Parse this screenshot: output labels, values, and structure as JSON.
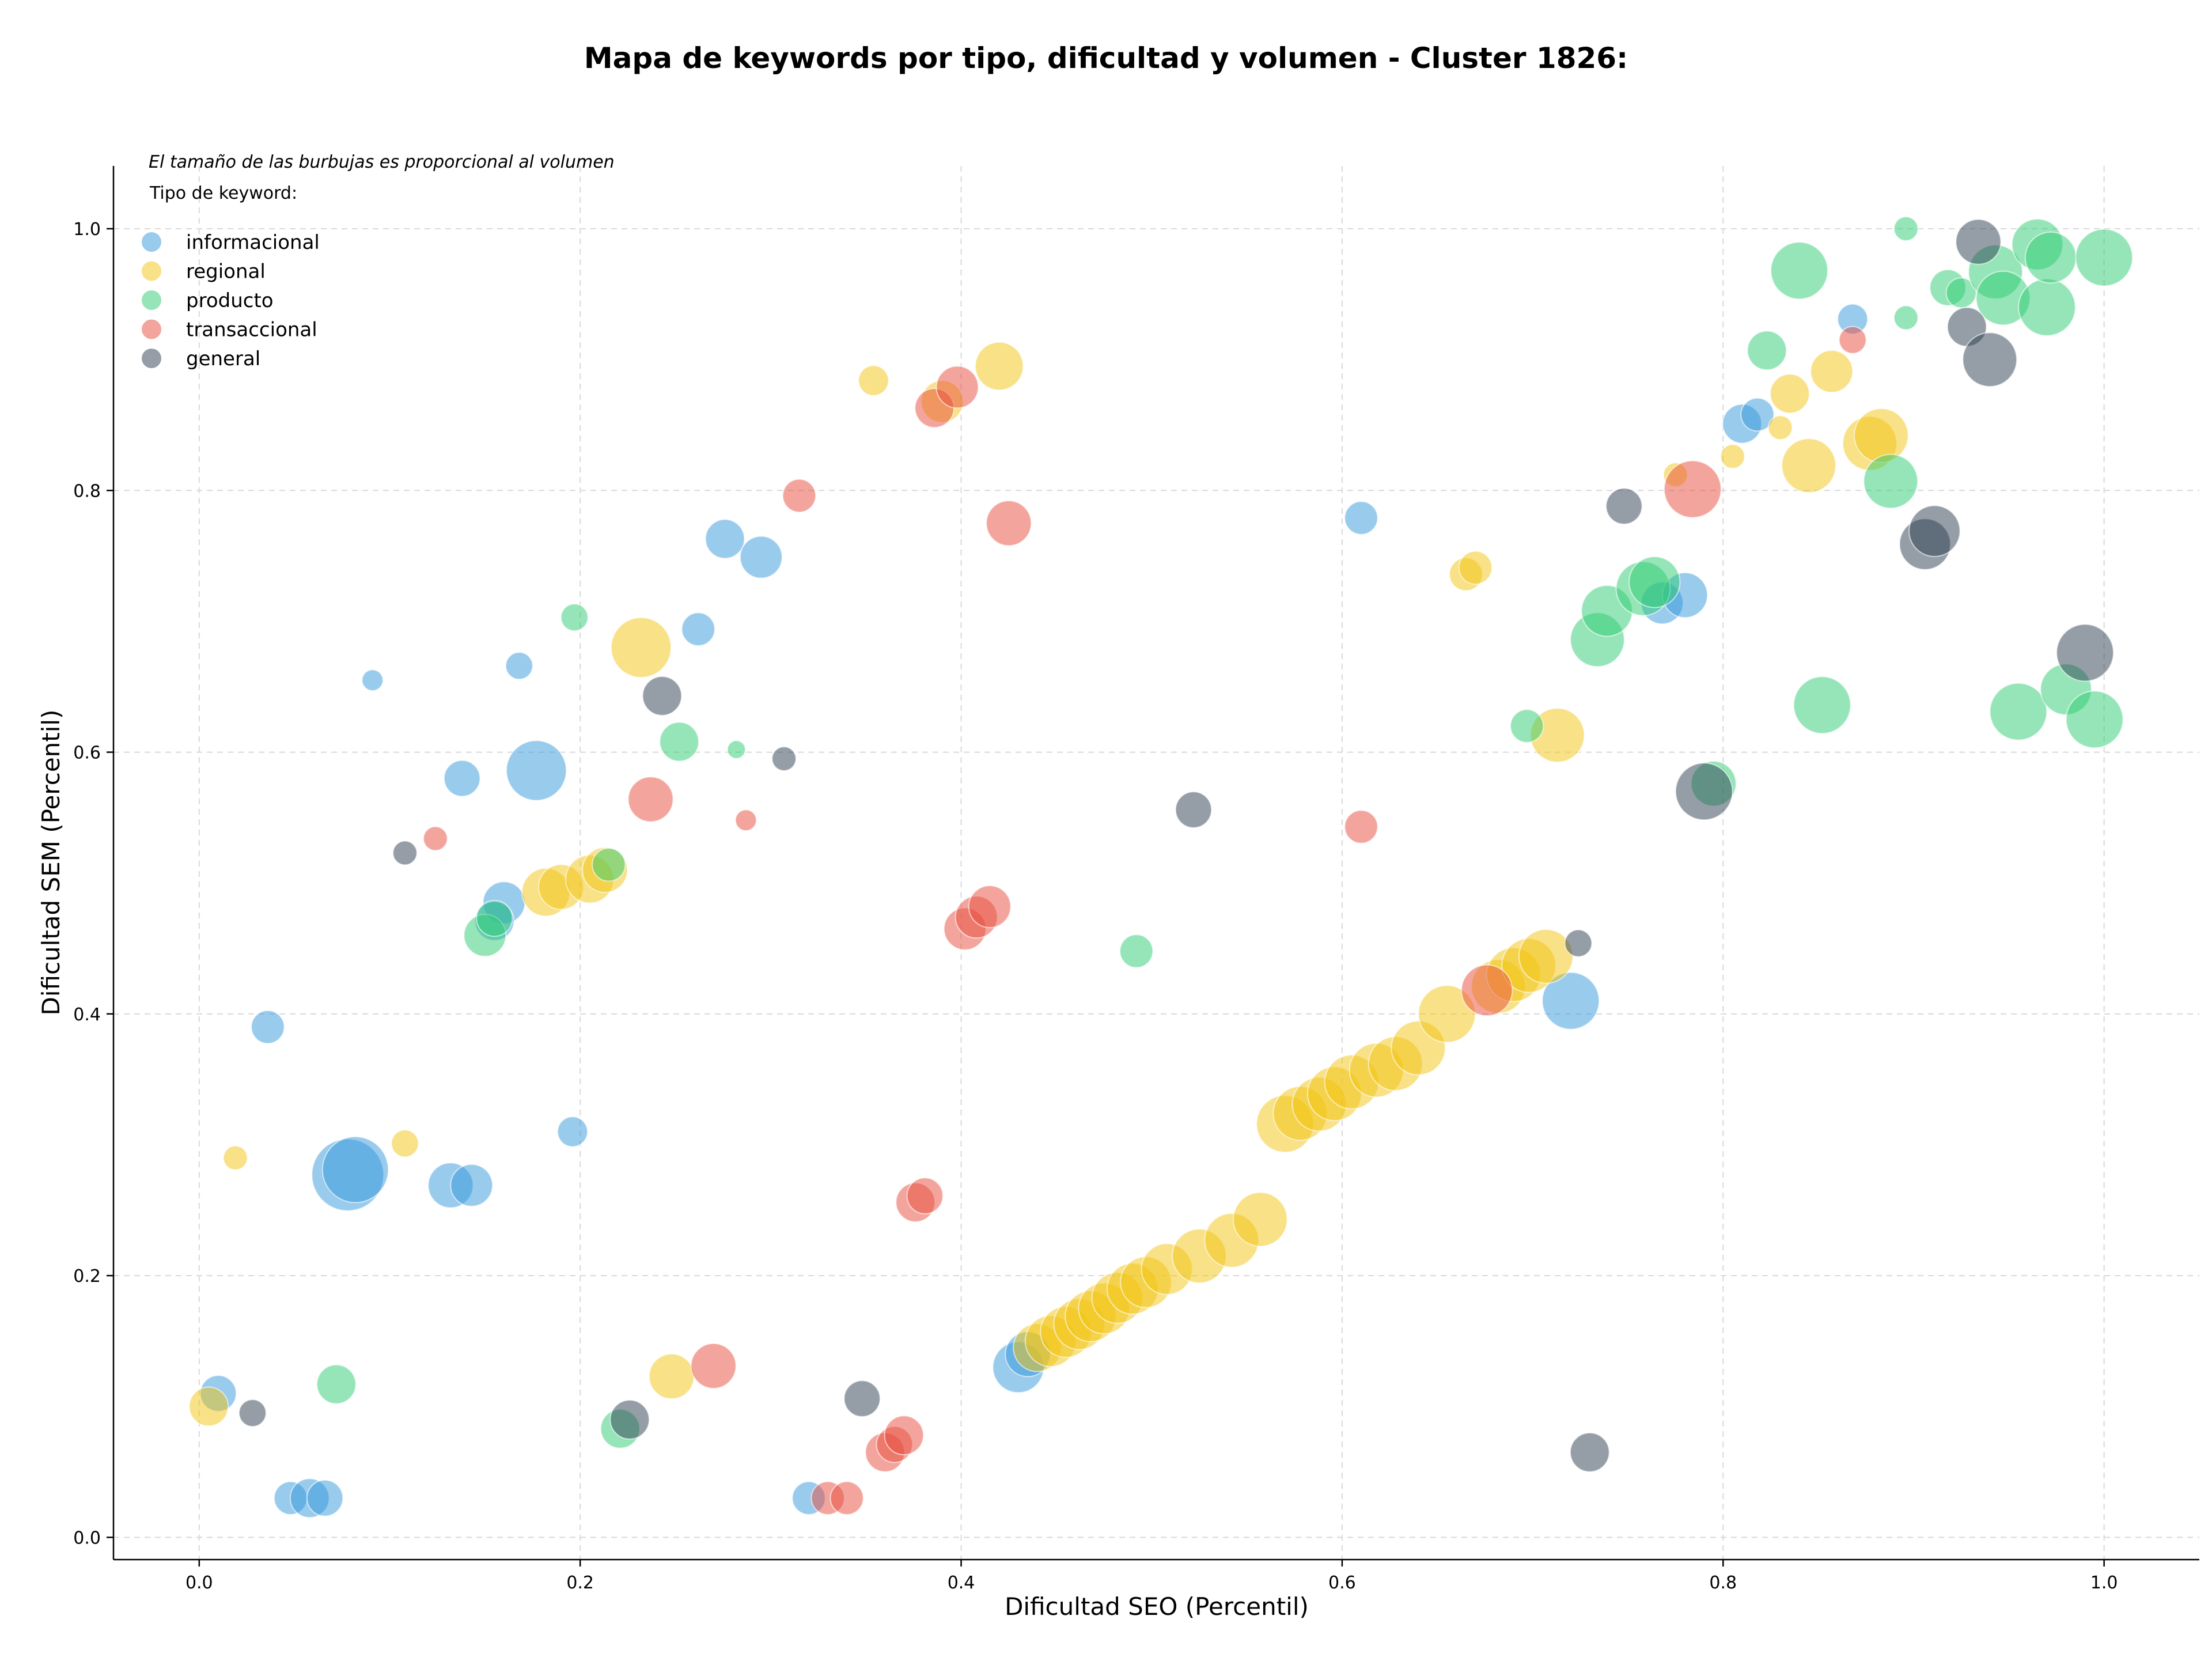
{
  "chart_data": {
    "type": "scatter",
    "title": "Mapa de keywords por tipo, dificultad y volumen - Cluster 1826:",
    "xlabel": "Dificultad SEO (Percentil)",
    "ylabel": "Dificultad SEM (Percentil)",
    "xlim": [
      -0.045,
      1.05
    ],
    "ylim": [
      -0.017,
      1.048
    ],
    "xticks": [
      0.0,
      0.2,
      0.4,
      0.6,
      0.8,
      1.0
    ],
    "yticks": [
      0.0,
      0.2,
      0.4,
      0.6,
      0.8,
      1.0
    ],
    "xtick_labels": [
      "0.0",
      "0.2",
      "0.4",
      "0.6",
      "0.8",
      "1.0"
    ],
    "ytick_labels": [
      "0.0",
      "0.2",
      "0.4",
      "0.6",
      "0.8",
      "1.0"
    ],
    "grid": true,
    "note": "El tamaño de las burbujas es proporcional al volumen",
    "legend_title": "Tipo de keyword:",
    "legend_position": "top-left",
    "series": [
      {
        "name": "informacional",
        "color": "#3498db",
        "points": [
          [
            0.01,
            0.11,
            12
          ],
          [
            0.048,
            0.03,
            11
          ],
          [
            0.058,
            0.03,
            13
          ],
          [
            0.066,
            0.03,
            12
          ],
          [
            0.036,
            0.39,
            11
          ],
          [
            0.091,
            0.655,
            7
          ],
          [
            0.078,
            0.277,
            24
          ],
          [
            0.082,
            0.281,
            22
          ],
          [
            0.132,
            0.269,
            15
          ],
          [
            0.143,
            0.269,
            14
          ],
          [
            0.138,
            0.58,
            12
          ],
          [
            0.16,
            0.485,
            14
          ],
          [
            0.155,
            0.471,
            13
          ],
          [
            0.168,
            0.666,
            9
          ],
          [
            0.177,
            0.586,
            20
          ],
          [
            0.196,
            0.31,
            10
          ],
          [
            0.262,
            0.694,
            11
          ],
          [
            0.276,
            0.763,
            13
          ],
          [
            0.295,
            0.749,
            14
          ],
          [
            0.32,
            0.03,
            11
          ],
          [
            0.43,
            0.13,
            17
          ],
          [
            0.435,
            0.14,
            15
          ],
          [
            0.61,
            0.779,
            11
          ],
          [
            0.72,
            0.41,
            19
          ],
          [
            0.768,
            0.714,
            14
          ],
          [
            0.78,
            0.72,
            15
          ],
          [
            0.81,
            0.851,
            13
          ],
          [
            0.818,
            0.858,
            11
          ],
          [
            0.868,
            0.931,
            10
          ]
        ]
      },
      {
        "name": "regional",
        "color": "#f1c40f",
        "points": [
          [
            0.005,
            0.1,
            13
          ],
          [
            0.019,
            0.29,
            8
          ],
          [
            0.108,
            0.301,
            9
          ],
          [
            0.182,
            0.493,
            16
          ],
          [
            0.19,
            0.497,
            15
          ],
          [
            0.205,
            0.503,
            16
          ],
          [
            0.213,
            0.51,
            15
          ],
          [
            0.232,
            0.68,
            20
          ],
          [
            0.248,
            0.123,
            15
          ],
          [
            0.354,
            0.884,
            10
          ],
          [
            0.39,
            0.868,
            14
          ],
          [
            0.42,
            0.895,
            16
          ],
          [
            0.44,
            0.145,
            16
          ],
          [
            0.447,
            0.15,
            17
          ],
          [
            0.455,
            0.157,
            17
          ],
          [
            0.462,
            0.163,
            17
          ],
          [
            0.468,
            0.169,
            17
          ],
          [
            0.475,
            0.175,
            17
          ],
          [
            0.482,
            0.183,
            17
          ],
          [
            0.49,
            0.19,
            17
          ],
          [
            0.497,
            0.195,
            17
          ],
          [
            0.508,
            0.205,
            17
          ],
          [
            0.525,
            0.215,
            18
          ],
          [
            0.542,
            0.227,
            18
          ],
          [
            0.557,
            0.243,
            18
          ],
          [
            0.57,
            0.316,
            19
          ],
          [
            0.578,
            0.324,
            18
          ],
          [
            0.588,
            0.331,
            18
          ],
          [
            0.596,
            0.339,
            18
          ],
          [
            0.605,
            0.348,
            18
          ],
          [
            0.618,
            0.357,
            18
          ],
          [
            0.628,
            0.362,
            18
          ],
          [
            0.64,
            0.374,
            18
          ],
          [
            0.655,
            0.4,
            19
          ],
          [
            0.665,
            0.736,
            11
          ],
          [
            0.67,
            0.741,
            11
          ],
          [
            0.682,
            0.421,
            18
          ],
          [
            0.69,
            0.43,
            18
          ],
          [
            0.698,
            0.437,
            18
          ],
          [
            0.707,
            0.444,
            18
          ],
          [
            0.713,
            0.613,
            18
          ],
          [
            0.775,
            0.812,
            8
          ],
          [
            0.805,
            0.826,
            8
          ],
          [
            0.83,
            0.848,
            8
          ],
          [
            0.835,
            0.874,
            13
          ],
          [
            0.845,
            0.819,
            18
          ],
          [
            0.857,
            0.891,
            14
          ],
          [
            0.877,
            0.836,
            18
          ],
          [
            0.883,
            0.842,
            18
          ]
        ]
      },
      {
        "name": "producto",
        "color": "#2ecc71",
        "points": [
          [
            0.072,
            0.117,
            13
          ],
          [
            0.15,
            0.46,
            14
          ],
          [
            0.155,
            0.473,
            12
          ],
          [
            0.197,
            0.703,
            9
          ],
          [
            0.215,
            0.514,
            11
          ],
          [
            0.221,
            0.083,
            13
          ],
          [
            0.252,
            0.608,
            13
          ],
          [
            0.282,
            0.602,
            6
          ],
          [
            0.492,
            0.448,
            11
          ],
          [
            0.697,
            0.62,
            11
          ],
          [
            0.734,
            0.686,
            18
          ],
          [
            0.739,
            0.708,
            17
          ],
          [
            0.758,
            0.725,
            18
          ],
          [
            0.764,
            0.73,
            17
          ],
          [
            0.795,
            0.576,
            15
          ],
          [
            0.823,
            0.907,
            13
          ],
          [
            0.84,
            0.968,
            19
          ],
          [
            0.852,
            0.636,
            19
          ],
          [
            0.888,
            0.807,
            18
          ],
          [
            0.896,
            1.0,
            8
          ],
          [
            0.896,
            0.932,
            8
          ],
          [
            0.918,
            0.955,
            12
          ],
          [
            0.925,
            0.951,
            10
          ],
          [
            0.943,
            0.967,
            18
          ],
          [
            0.947,
            0.947,
            18
          ],
          [
            0.955,
            0.631,
            19
          ],
          [
            0.965,
            0.988,
            17
          ],
          [
            0.97,
            0.94,
            19
          ],
          [
            0.972,
            0.978,
            17
          ],
          [
            0.98,
            0.648,
            17
          ],
          [
            0.995,
            0.625,
            19
          ],
          [
            1.0,
            0.978,
            19
          ]
        ]
      },
      {
        "name": "transaccional",
        "color": "#e74c3c",
        "points": [
          [
            0.124,
            0.534,
            8
          ],
          [
            0.237,
            0.564,
            15
          ],
          [
            0.27,
            0.131,
            15
          ],
          [
            0.287,
            0.548,
            7
          ],
          [
            0.315,
            0.796,
            11
          ],
          [
            0.33,
            0.03,
            11
          ],
          [
            0.34,
            0.03,
            11
          ],
          [
            0.36,
            0.065,
            13
          ],
          [
            0.365,
            0.071,
            12
          ],
          [
            0.37,
            0.078,
            13
          ],
          [
            0.376,
            0.256,
            13
          ],
          [
            0.381,
            0.261,
            12
          ],
          [
            0.386,
            0.863,
            13
          ],
          [
            0.398,
            0.879,
            14
          ],
          [
            0.402,
            0.465,
            14
          ],
          [
            0.408,
            0.474,
            14
          ],
          [
            0.415,
            0.482,
            14
          ],
          [
            0.425,
            0.775,
            15
          ],
          [
            0.61,
            0.543,
            11
          ],
          [
            0.676,
            0.418,
            17
          ],
          [
            0.784,
            0.801,
            19
          ],
          [
            0.868,
            0.915,
            9
          ]
        ]
      },
      {
        "name": "general",
        "color": "#2c3e50",
        "points": [
          [
            0.028,
            0.095,
            9
          ],
          [
            0.108,
            0.523,
            8
          ],
          [
            0.226,
            0.09,
            13
          ],
          [
            0.243,
            0.643,
            13
          ],
          [
            0.307,
            0.595,
            8
          ],
          [
            0.348,
            0.106,
            12
          ],
          [
            0.522,
            0.556,
            12
          ],
          [
            0.724,
            0.454,
            9
          ],
          [
            0.73,
            0.065,
            13
          ],
          [
            0.748,
            0.788,
            12
          ],
          [
            0.79,
            0.57,
            19
          ],
          [
            0.906,
            0.759,
            17
          ],
          [
            0.911,
            0.769,
            17
          ],
          [
            0.928,
            0.925,
            13
          ],
          [
            0.934,
            0.99,
            15
          ],
          [
            0.94,
            0.9,
            18
          ],
          [
            0.99,
            0.676,
            19
          ]
        ]
      }
    ]
  }
}
